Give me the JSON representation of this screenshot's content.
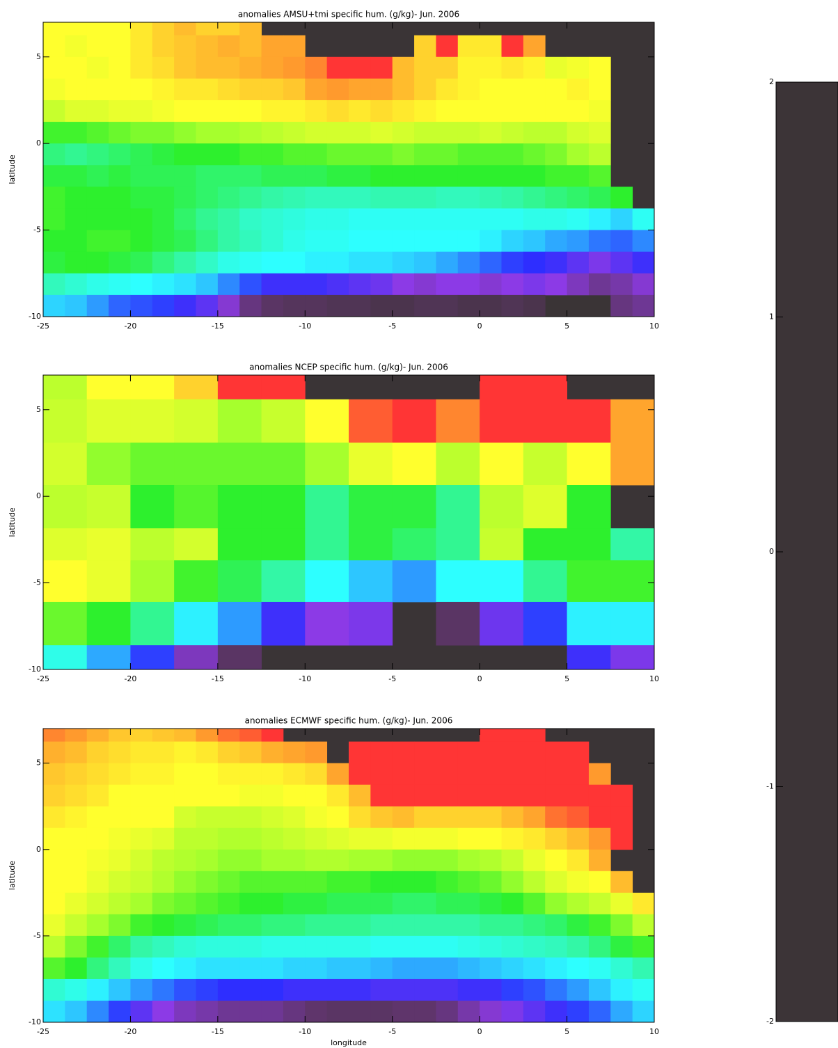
{
  "chart_data": [
    {
      "type": "heatmap",
      "title": "anomalies AMSU+tmi specific hum. (g/kg)- Jun. 2006",
      "ylabel": "latitude",
      "xlim": [
        -25,
        10
      ],
      "ylim": [
        -10,
        7
      ],
      "xticks": [
        -25,
        -20,
        -15,
        -10,
        -5,
        0,
        5,
        10
      ],
      "yticks": [
        -10,
        -5,
        0,
        5
      ],
      "land_color": "#3a3436",
      "x_edges": [
        -25,
        -23.75,
        -22.5,
        -21.25,
        -20,
        -18.75,
        -17.5,
        -16.25,
        -15,
        -13.75,
        -12.5,
        -11.25,
        -10,
        -8.75,
        -7.5,
        -6.25,
        -5,
        -3.75,
        -2.5,
        -1.25,
        0,
        1.25,
        2.5,
        3.75,
        5,
        6.25,
        7.5,
        8.75,
        10
      ],
      "y_edges": [
        7.5,
        6.25,
        5,
        3.75,
        2.5,
        1.25,
        0,
        -1.25,
        -2.5,
        -3.75,
        -5,
        -6.25,
        -7.5,
        -8.75,
        -10
      ],
      "values": [
        [
          1.0,
          1.0,
          1.0,
          1.0,
          1.1,
          1.2,
          1.3,
          1.2,
          1.2,
          1.3,
          null,
          null,
          null,
          null,
          null,
          null,
          null,
          null,
          null,
          null,
          null,
          null,
          null,
          null,
          null,
          null,
          null,
          null
        ],
        [
          1.0,
          0.95,
          1.0,
          1.0,
          1.1,
          1.2,
          1.25,
          1.3,
          1.35,
          1.3,
          1.4,
          1.4,
          null,
          null,
          null,
          null,
          null,
          1.2,
          1.7,
          1.1,
          1.1,
          1.8,
          1.4,
          null,
          null,
          null,
          null,
          null
        ],
        [
          1.0,
          1.0,
          0.95,
          1.0,
          1.1,
          1.15,
          1.25,
          1.3,
          1.3,
          1.35,
          1.4,
          1.45,
          1.5,
          1.75,
          1.8,
          1.75,
          1.3,
          1.2,
          1.2,
          1.05,
          1.05,
          1.1,
          1.05,
          0.9,
          0.95,
          1.0,
          null,
          null
        ],
        [
          0.95,
          1.0,
          1.0,
          1.0,
          1.0,
          1.05,
          1.1,
          1.1,
          1.15,
          1.2,
          1.2,
          1.25,
          1.4,
          1.45,
          1.4,
          1.4,
          1.3,
          1.2,
          1.1,
          1.05,
          1.0,
          1.0,
          1.0,
          1.0,
          1.05,
          1.0,
          null,
          null
        ],
        [
          0.75,
          0.85,
          0.85,
          0.9,
          0.9,
          0.95,
          1.0,
          1.0,
          1.0,
          1.0,
          1.05,
          1.05,
          1.1,
          1.15,
          1.1,
          1.15,
          1.1,
          1.05,
          1.0,
          1.0,
          1.0,
          1.0,
          1.0,
          1.0,
          1.0,
          0.95,
          null,
          null
        ],
        [
          0.35,
          0.35,
          0.4,
          0.45,
          0.5,
          0.5,
          0.55,
          0.6,
          0.6,
          0.65,
          0.7,
          0.75,
          0.8,
          0.8,
          0.8,
          0.85,
          0.8,
          0.75,
          0.75,
          0.75,
          0.8,
          0.75,
          0.7,
          0.7,
          0.8,
          0.85,
          null,
          null
        ],
        [
          0.1,
          0.05,
          0.1,
          0.15,
          0.2,
          0.25,
          0.3,
          0.3,
          0.3,
          0.35,
          0.35,
          0.4,
          0.4,
          0.45,
          0.45,
          0.45,
          0.5,
          0.45,
          0.45,
          0.4,
          0.4,
          0.4,
          0.45,
          0.5,
          0.6,
          0.7,
          null,
          null
        ],
        [
          0.25,
          0.25,
          0.2,
          0.25,
          0.2,
          0.2,
          0.2,
          0.15,
          0.15,
          0.15,
          0.2,
          0.2,
          0.2,
          0.25,
          0.25,
          0.3,
          0.3,
          0.3,
          0.3,
          0.3,
          0.3,
          0.3,
          0.3,
          0.35,
          0.35,
          0.4,
          null,
          null
        ],
        [
          0.35,
          0.3,
          0.3,
          0.3,
          0.25,
          0.25,
          0.2,
          0.15,
          0.1,
          0.05,
          0.0,
          -0.05,
          -0.1,
          -0.1,
          -0.1,
          -0.05,
          -0.05,
          -0.05,
          -0.1,
          -0.1,
          -0.05,
          0.0,
          0.05,
          0.1,
          0.15,
          0.2,
          0.3,
          null
        ],
        [
          0.35,
          0.3,
          0.3,
          0.3,
          0.3,
          0.25,
          0.15,
          0.05,
          0.0,
          -0.15,
          -0.2,
          -0.25,
          -0.3,
          -0.3,
          -0.35,
          -0.35,
          -0.35,
          -0.35,
          -0.35,
          -0.35,
          -0.35,
          -0.35,
          -0.3,
          -0.3,
          -0.35,
          -0.45,
          -0.55,
          -0.35
        ],
        [
          0.3,
          0.3,
          0.35,
          0.35,
          0.3,
          0.25,
          0.2,
          0.1,
          0.0,
          -0.1,
          -0.2,
          -0.3,
          -0.35,
          -0.35,
          -0.4,
          -0.4,
          -0.4,
          -0.4,
          -0.4,
          -0.4,
          -0.45,
          -0.55,
          -0.6,
          -0.7,
          -0.75,
          -0.85,
          -0.9,
          -0.8
        ],
        [
          0.25,
          0.3,
          0.3,
          0.25,
          0.2,
          0.1,
          0.0,
          -0.15,
          -0.3,
          -0.35,
          -0.4,
          -0.4,
          -0.45,
          -0.45,
          -0.5,
          -0.5,
          -0.55,
          -0.6,
          -0.7,
          -0.8,
          -0.9,
          -1.0,
          -1.05,
          -1.1,
          -1.2,
          -1.3,
          -1.2,
          -1.1
        ],
        [
          -0.1,
          -0.2,
          -0.3,
          -0.35,
          -0.4,
          -0.45,
          -0.5,
          -0.6,
          -0.8,
          -0.95,
          -1.1,
          -1.1,
          -1.1,
          -1.15,
          -1.2,
          -1.25,
          -1.35,
          -1.4,
          -1.35,
          -1.35,
          -1.4,
          -1.35,
          -1.3,
          -1.35,
          -1.45,
          -1.55,
          -1.5,
          -1.4
        ],
        [
          -0.55,
          -0.6,
          -0.75,
          -0.9,
          -0.95,
          -1.0,
          -1.1,
          -1.2,
          -1.4,
          -1.6,
          -1.7,
          -1.75,
          -1.75,
          -1.8,
          -1.8,
          -1.85,
          -1.85,
          -1.8,
          -1.8,
          -1.85,
          -1.85,
          -1.8,
          -1.85,
          null,
          null,
          null,
          -1.6,
          -1.55
        ]
      ]
    },
    {
      "type": "heatmap",
      "title": "anomalies NCEP specific hum. (g/kg)- Jun. 2006",
      "ylabel": "latitude",
      "xlim": [
        -25,
        10
      ],
      "ylim": [
        -10,
        7
      ],
      "xticks": [
        -25,
        -20,
        -15,
        -10,
        -5,
        0,
        5,
        10
      ],
      "yticks": [
        -10,
        -5,
        0,
        5
      ],
      "land_color": "#3a3436",
      "x_edges": [
        -25,
        -22.5,
        -20,
        -17.5,
        -15,
        -12.5,
        -10,
        -7.5,
        -5,
        -2.5,
        0,
        2.5,
        5,
        7.5,
        10
      ],
      "y_edges": [
        8,
        5.6,
        3.1,
        0.65,
        -1.85,
        -3.7,
        -6.1,
        -8.6,
        -11
      ],
      "values": [
        [
          0.7,
          1.0,
          1.0,
          1.2,
          1.8,
          1.8,
          null,
          null,
          null,
          null,
          1.8,
          1.8,
          null,
          null
        ],
        [
          0.75,
          0.85,
          0.85,
          0.8,
          0.6,
          0.75,
          1.0,
          1.6,
          1.75,
          1.5,
          1.8,
          1.8,
          1.8,
          1.4
        ],
        [
          0.8,
          0.55,
          0.45,
          0.45,
          0.45,
          0.45,
          0.6,
          0.9,
          1.0,
          0.7,
          1.0,
          0.75,
          1.0,
          1.4
        ],
        [
          0.7,
          0.75,
          0.3,
          0.4,
          0.3,
          0.3,
          0.05,
          0.25,
          0.25,
          0.05,
          0.7,
          0.85,
          0.3,
          null
        ],
        [
          0.85,
          0.9,
          0.7,
          0.8,
          0.3,
          0.3,
          0.05,
          0.25,
          0.15,
          0.05,
          0.75,
          0.3,
          0.3,
          0.0
        ],
        [
          1.0,
          0.9,
          0.6,
          0.35,
          0.2,
          0.0,
          -0.4,
          -0.6,
          -0.75,
          -0.4,
          -0.4,
          0.05,
          0.35,
          0.35
        ],
        [
          0.45,
          0.3,
          0.05,
          -0.45,
          -0.75,
          -1.1,
          -1.35,
          -1.3,
          null,
          -1.7,
          -1.25,
          -1.0,
          -0.45,
          -0.45
        ],
        [
          -0.3,
          -0.7,
          -1.0,
          -1.45,
          -1.7,
          null,
          null,
          null,
          null,
          null,
          null,
          null,
          -1.1,
          -1.3
        ]
      ]
    },
    {
      "type": "heatmap",
      "title": "anomalies ECMWF specific hum. (g/kg)- Jun. 2006",
      "ylabel": "latitude",
      "xlabel": "longitude",
      "xlim": [
        -25,
        10
      ],
      "ylim": [
        -10,
        7
      ],
      "xticks": [
        -25,
        -20,
        -15,
        -10,
        -5,
        0,
        5,
        10
      ],
      "yticks": [
        -10,
        -5,
        0,
        5
      ],
      "land_color": "#3a3436",
      "x_edges": [
        -25,
        -23.75,
        -22.5,
        -21.25,
        -20,
        -18.75,
        -17.5,
        -16.25,
        -15,
        -13.75,
        -12.5,
        -11.25,
        -10,
        -8.75,
        -7.5,
        -6.25,
        -5,
        -3.75,
        -2.5,
        -1.25,
        0,
        1.25,
        2.5,
        3.75,
        5,
        6.25,
        7.5,
        8.75,
        10
      ],
      "y_edges": [
        7.5,
        6.25,
        5,
        3.75,
        2.5,
        1.25,
        0,
        -1.25,
        -2.5,
        -3.75,
        -5,
        -6.25,
        -7.5,
        -8.75,
        -10
      ],
      "values": [
        [
          1.5,
          1.45,
          1.35,
          1.25,
          1.2,
          1.25,
          1.3,
          1.45,
          1.55,
          1.6,
          1.8,
          null,
          null,
          null,
          null,
          null,
          null,
          null,
          null,
          null,
          1.8,
          1.8,
          1.8,
          null,
          null,
          null,
          null,
          null
        ],
        [
          1.35,
          1.3,
          1.2,
          1.15,
          1.1,
          1.1,
          1.05,
          1.1,
          1.2,
          1.25,
          1.35,
          1.4,
          1.45,
          null,
          1.8,
          1.8,
          1.8,
          1.8,
          1.8,
          1.8,
          1.8,
          1.8,
          1.8,
          1.8,
          1.8,
          null,
          null,
          null
        ],
        [
          1.25,
          1.2,
          1.15,
          1.1,
          1.05,
          1.05,
          1.0,
          1.0,
          1.05,
          1.05,
          1.05,
          1.1,
          1.15,
          1.4,
          1.7,
          1.8,
          1.8,
          1.8,
          1.8,
          1.8,
          1.75,
          1.75,
          1.75,
          1.8,
          1.8,
          1.45,
          null,
          null
        ],
        [
          1.2,
          1.15,
          1.1,
          1.0,
          1.0,
          1.0,
          1.0,
          1.0,
          1.0,
          0.95,
          0.95,
          1.0,
          1.0,
          1.1,
          1.3,
          1.75,
          1.8,
          1.75,
          1.75,
          1.75,
          1.75,
          1.75,
          1.8,
          1.75,
          1.75,
          1.8,
          1.8,
          null
        ],
        [
          1.1,
          1.05,
          1.0,
          1.0,
          1.0,
          1.0,
          0.8,
          0.75,
          0.75,
          0.75,
          0.8,
          0.85,
          0.95,
          1.0,
          1.15,
          1.25,
          1.3,
          1.2,
          1.2,
          1.2,
          1.2,
          1.3,
          1.4,
          1.55,
          1.6,
          1.75,
          1.8,
          null
        ],
        [
          1.0,
          1.0,
          1.0,
          0.95,
          0.9,
          0.85,
          0.7,
          0.7,
          0.65,
          0.65,
          0.7,
          0.75,
          0.8,
          0.85,
          0.9,
          0.9,
          0.95,
          0.95,
          0.95,
          1.0,
          1.0,
          1.05,
          1.1,
          1.2,
          1.3,
          1.45,
          1.75,
          null
        ],
        [
          1.0,
          1.0,
          0.95,
          0.9,
          0.8,
          0.7,
          0.65,
          0.6,
          0.55,
          0.55,
          0.6,
          0.6,
          0.65,
          0.65,
          0.6,
          0.6,
          0.55,
          0.55,
          0.55,
          0.6,
          0.65,
          0.75,
          0.9,
          1.0,
          1.1,
          1.35,
          null,
          null
        ],
        [
          1.0,
          1.0,
          0.9,
          0.8,
          0.75,
          0.65,
          0.55,
          0.5,
          0.45,
          0.4,
          0.4,
          0.4,
          0.4,
          0.35,
          0.35,
          0.3,
          0.3,
          0.3,
          0.35,
          0.4,
          0.45,
          0.55,
          0.7,
          0.85,
          0.95,
          1.0,
          1.3,
          null
        ],
        [
          1.0,
          0.9,
          0.8,
          0.7,
          0.6,
          0.5,
          0.45,
          0.4,
          0.35,
          0.3,
          0.3,
          0.25,
          0.25,
          0.2,
          0.2,
          0.2,
          0.15,
          0.15,
          0.2,
          0.2,
          0.25,
          0.3,
          0.4,
          0.55,
          0.65,
          0.75,
          0.9,
          1.1
        ],
        [
          0.9,
          0.75,
          0.6,
          0.5,
          0.35,
          0.3,
          0.25,
          0.2,
          0.15,
          0.15,
          0.1,
          0.1,
          0.05,
          0.05,
          0.05,
          0.0,
          0.0,
          0.0,
          0.0,
          0.0,
          0.05,
          0.05,
          0.1,
          0.15,
          0.25,
          0.35,
          0.5,
          0.7
        ],
        [
          0.7,
          0.5,
          0.35,
          0.15,
          0.0,
          -0.1,
          -0.2,
          -0.25,
          -0.25,
          -0.25,
          -0.3,
          -0.3,
          -0.3,
          -0.3,
          -0.3,
          -0.35,
          -0.35,
          -0.35,
          -0.35,
          -0.3,
          -0.25,
          -0.2,
          -0.15,
          -0.1,
          0.0,
          0.1,
          0.25,
          0.35
        ],
        [
          0.4,
          0.3,
          0.1,
          -0.1,
          -0.3,
          -0.4,
          -0.45,
          -0.5,
          -0.5,
          -0.5,
          -0.5,
          -0.55,
          -0.55,
          -0.6,
          -0.6,
          -0.65,
          -0.7,
          -0.7,
          -0.7,
          -0.65,
          -0.6,
          -0.55,
          -0.5,
          -0.45,
          -0.4,
          -0.35,
          -0.2,
          -0.05
        ],
        [
          -0.2,
          -0.3,
          -0.45,
          -0.6,
          -0.75,
          -0.85,
          -0.95,
          -1.0,
          -1.05,
          -1.05,
          -1.05,
          -1.1,
          -1.1,
          -1.1,
          -1.1,
          -1.15,
          -1.15,
          -1.15,
          -1.15,
          -1.1,
          -1.1,
          -1.0,
          -0.95,
          -0.85,
          -0.75,
          -0.6,
          -0.45,
          -0.35
        ],
        [
          -0.5,
          -0.6,
          -0.8,
          -1.0,
          -1.2,
          -1.35,
          -1.45,
          -1.5,
          -1.55,
          -1.55,
          -1.55,
          -1.6,
          -1.65,
          -1.7,
          -1.7,
          -1.7,
          -1.65,
          -1.65,
          -1.6,
          -1.5,
          -1.4,
          -1.3,
          -1.2,
          -1.1,
          -1.0,
          -0.9,
          -0.7,
          -0.55
        ]
      ]
    },
    {
      "type": "colorbar",
      "ylim": [
        -2,
        2
      ],
      "yticks": [
        -2,
        -1,
        0,
        1,
        2
      ],
      "colorscale": [
        [
          -2,
          "#3c3437"
        ],
        [
          -1.65,
          "#5f356b"
        ],
        [
          -1.35,
          "#8c3ae6"
        ],
        [
          -1.05,
          "#2e2eff"
        ],
        [
          -0.75,
          "#2d9bff"
        ],
        [
          -0.4,
          "#2dffff"
        ],
        [
          0,
          "#33f7a6"
        ],
        [
          0.3,
          "#2df02d"
        ],
        [
          0.6,
          "#a6ff2d"
        ],
        [
          1.0,
          "#ffff2d"
        ],
        [
          1.45,
          "#ff9a2d"
        ],
        [
          1.7,
          "#ff3535"
        ],
        [
          2,
          "#ff3535"
        ]
      ]
    }
  ]
}
